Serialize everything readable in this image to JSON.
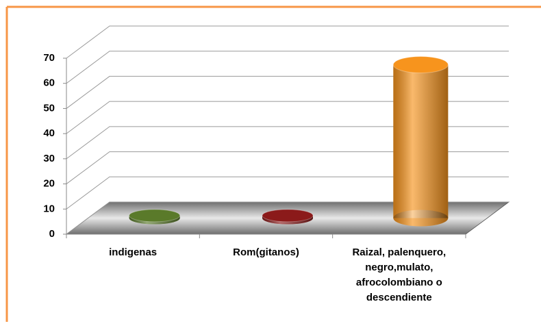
{
  "chart_data": {
    "type": "bar3d",
    "categories": [
      "indigenas",
      "Rom(gitanos)",
      "Raizal, palenquero, negro,mulato, afrocolombiano o descendiente"
    ],
    "series": [
      {
        "name": null,
        "colors": [
          "#5a7a2a",
          "#8b1a1a",
          "#f7941d"
        ],
        "values": [
          1,
          1,
          61
        ]
      }
    ],
    "ylim": [
      0,
      70
    ],
    "yticks": [
      0,
      10,
      20,
      30,
      40,
      50,
      60,
      70
    ],
    "grid": true
  }
}
